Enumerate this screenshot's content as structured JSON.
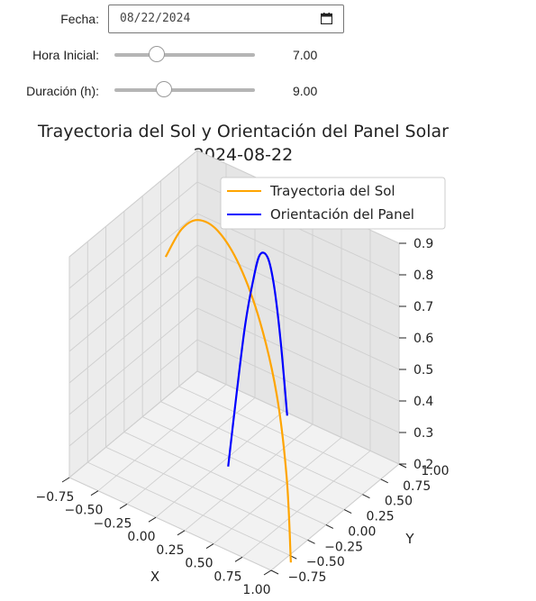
{
  "controls": {
    "date_label": "Fecha:",
    "date_value": "08/22/2024",
    "start_label": "Hora Inicial:",
    "start_value": "7.00",
    "start_fraction": 0.3,
    "duration_label": "Duración (h):",
    "duration_value": "9.00",
    "duration_fraction": 0.35,
    "calendar_icon": "calendar-icon"
  },
  "chart_data": {
    "type": "line",
    "projection": "3d",
    "title": "Trayectoria del Sol y Orientación del Panel Solar",
    "subtitle": "2024-08-22",
    "xlabel": "X",
    "ylabel": "Y",
    "zlabel": "",
    "xlim": [
      -0.75,
      1.0
    ],
    "ylim": [
      -0.75,
      1.0
    ],
    "zlim": [
      0.2,
      0.9
    ],
    "x_ticks": [
      "−0.75",
      "−0.50",
      "−0.25",
      "0.00",
      "0.25",
      "0.50",
      "0.75",
      "1.00"
    ],
    "y_ticks": [
      "−0.75",
      "−0.50",
      "−0.25",
      "0.00",
      "0.25",
      "0.50",
      "0.75",
      "1.00"
    ],
    "z_ticks": [
      "0.2",
      "0.3",
      "0.4",
      "0.5",
      "0.6",
      "0.7",
      "0.8",
      "0.9"
    ],
    "legend_position": "top-right",
    "grid": true,
    "series": [
      {
        "name": "Trayectoria del Sol",
        "color": "#ffa500",
        "points": [
          [
            0.93,
            -0.37,
            0.14
          ],
          [
            0.85,
            -0.3,
            0.38
          ],
          [
            0.7,
            -0.2,
            0.6
          ],
          [
            0.48,
            -0.08,
            0.77
          ],
          [
            0.22,
            0.05,
            0.88
          ],
          [
            -0.05,
            0.18,
            0.92
          ],
          [
            -0.3,
            0.3,
            0.89
          ],
          [
            -0.52,
            0.42,
            0.8
          ],
          [
            -0.72,
            0.52,
            0.66
          ]
        ]
      },
      {
        "name": "Orientación del Panel",
        "color": "#0000ff",
        "points": [
          [
            0.38,
            -0.36,
            0.35
          ],
          [
            0.37,
            -0.22,
            0.57
          ],
          [
            0.35,
            -0.08,
            0.74
          ],
          [
            0.33,
            0.06,
            0.85
          ],
          [
            0.3,
            0.2,
            0.9
          ],
          [
            0.28,
            0.34,
            0.86
          ],
          [
            0.26,
            0.46,
            0.74
          ],
          [
            0.24,
            0.58,
            0.54
          ],
          [
            0.22,
            0.7,
            0.28
          ]
        ]
      }
    ]
  }
}
